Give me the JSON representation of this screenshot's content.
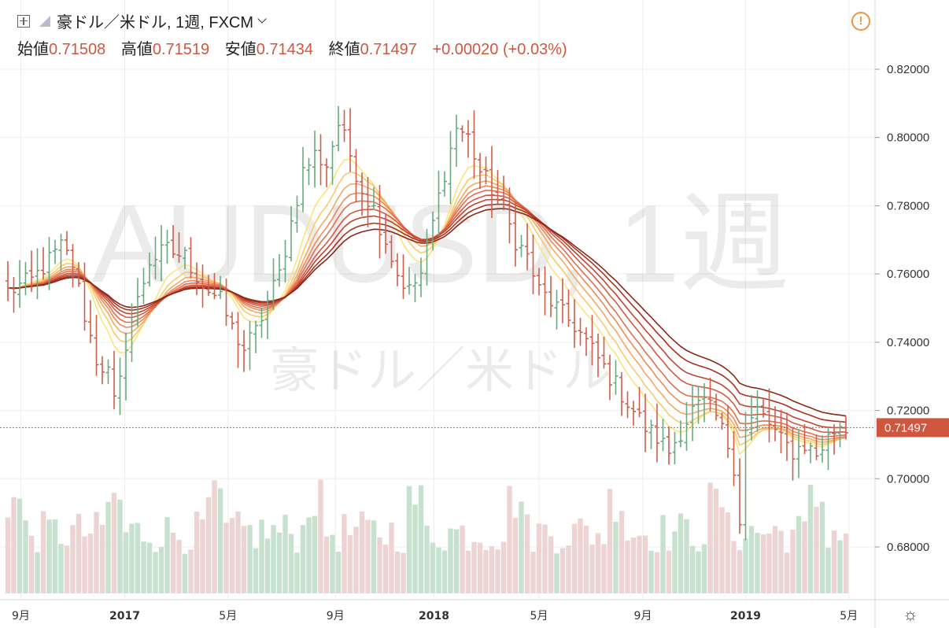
{
  "header": {
    "symbol": "豪ドル／米ドル, 1週, FXCM",
    "ohlc": [
      {
        "label": "始値",
        "value": "0.71508"
      },
      {
        "label": "高値",
        "value": "0.71519"
      },
      {
        "label": "安値",
        "value": "0.71434"
      },
      {
        "label": "終値",
        "value": "0.71497"
      }
    ],
    "change": "+0.00020 (+0.03%)"
  },
  "watermark": {
    "ticker": "AUDUSD, 1週",
    "name": "豪ドル／米ドル"
  },
  "chart_data": {
    "type": "ohlc",
    "ylim": [
      0.664,
      0.828
    ],
    "yticks": [
      "0.82000",
      "0.80000",
      "0.78000",
      "0.76000",
      "0.74000",
      "0.72000",
      "0.70000",
      "0.68000"
    ],
    "ytick_values": [
      0.82,
      0.8,
      0.78,
      0.76,
      0.74,
      0.72,
      0.7,
      0.68
    ],
    "xticks": [
      {
        "label": "9月",
        "t": 2.2
      },
      {
        "label": "2017",
        "t": 19.8
      },
      {
        "label": "5月",
        "t": 37.3
      },
      {
        "label": "9月",
        "t": 55.5
      },
      {
        "label": "2018",
        "t": 72.2
      },
      {
        "label": "5月",
        "t": 90.0
      },
      {
        "label": "9月",
        "t": 107.6
      },
      {
        "label": "2019",
        "t": 125.0
      },
      {
        "label": "5月",
        "t": 142.5
      }
    ],
    "last_price": {
      "label": "0.71497",
      "value": 0.71497
    },
    "ribbon_colors": [
      "#fce37d",
      "#fac96a",
      "#f4a860",
      "#ec8a57",
      "#e26e4f",
      "#d65744",
      "#c3432f",
      "#a83222",
      "#8a2716"
    ],
    "up_color": "#6aa97f",
    "down_color": "#cf5e4b",
    "vol_up": "#c7e1cf",
    "vol_down": "#edd4d2",
    "anchors": [
      [
        0,
        0.755
      ],
      [
        4,
        0.758
      ],
      [
        7,
        0.764
      ],
      [
        9,
        0.768
      ],
      [
        11,
        0.763
      ],
      [
        13,
        0.748
      ],
      [
        15,
        0.735
      ],
      [
        17,
        0.731
      ],
      [
        18,
        0.722
      ],
      [
        19,
        0.728
      ],
      [
        20,
        0.74
      ],
      [
        22,
        0.752
      ],
      [
        24,
        0.764
      ],
      [
        27,
        0.767
      ],
      [
        30,
        0.765
      ],
      [
        33,
        0.757
      ],
      [
        36,
        0.752
      ],
      [
        38,
        0.744
      ],
      [
        40,
        0.738
      ],
      [
        42,
        0.743
      ],
      [
        44,
        0.752
      ],
      [
        46,
        0.76
      ],
      [
        48,
        0.775
      ],
      [
        50,
        0.79
      ],
      [
        52,
        0.795
      ],
      [
        54,
        0.792
      ],
      [
        56,
        0.804
      ],
      [
        58,
        0.795
      ],
      [
        60,
        0.785
      ],
      [
        62,
        0.779
      ],
      [
        64,
        0.77
      ],
      [
        66,
        0.76
      ],
      [
        68,
        0.755
      ],
      [
        70,
        0.76
      ],
      [
        72,
        0.775
      ],
      [
        74,
        0.79
      ],
      [
        76,
        0.803
      ],
      [
        78,
        0.8
      ],
      [
        80,
        0.79
      ],
      [
        82,
        0.785
      ],
      [
        84,
        0.778
      ],
      [
        86,
        0.77
      ],
      [
        88,
        0.765
      ],
      [
        90,
        0.755
      ],
      [
        92,
        0.752
      ],
      [
        94,
        0.748
      ],
      [
        96,
        0.745
      ],
      [
        98,
        0.74
      ],
      [
        100,
        0.735
      ],
      [
        102,
        0.73
      ],
      [
        104,
        0.725
      ],
      [
        106,
        0.72
      ],
      [
        108,
        0.715
      ],
      [
        110,
        0.712
      ],
      [
        112,
        0.708
      ],
      [
        114,
        0.714
      ],
      [
        116,
        0.72
      ],
      [
        118,
        0.722
      ],
      [
        120,
        0.718
      ],
      [
        122,
        0.71
      ],
      [
        123,
        0.704
      ],
      [
        124,
        0.688
      ],
      [
        125,
        0.714
      ],
      [
        127,
        0.72
      ],
      [
        129,
        0.716
      ],
      [
        131,
        0.711
      ],
      [
        133,
        0.708
      ],
      [
        135,
        0.71
      ],
      [
        137,
        0.707
      ],
      [
        139,
        0.712
      ],
      [
        141,
        0.716
      ],
      [
        142,
        0.715
      ]
    ],
    "n_weeks": 143
  },
  "icons": {
    "warning": "warning-icon",
    "settings": "gear-icon",
    "add": "add-indicator-icon",
    "bars": "bar-style-icon",
    "chevron": "chevron-down-icon"
  },
  "glyphs": {
    "warning": "!",
    "gear": "☼"
  }
}
